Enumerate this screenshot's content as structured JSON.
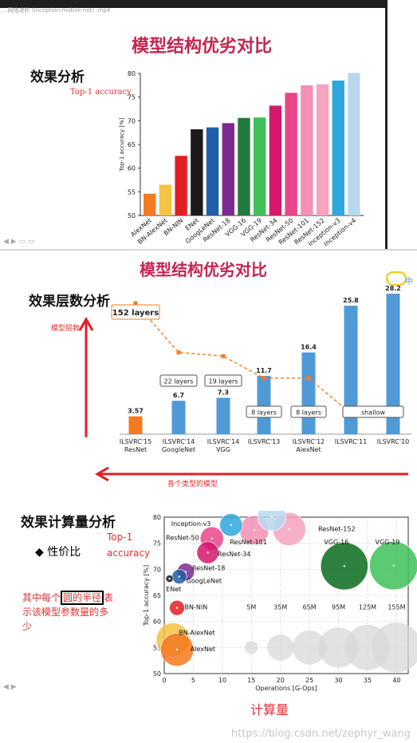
{
  "window": {
    "title": "...网络进阶 (Inception-mobile-net) .mp4"
  },
  "panel1": {
    "title": "模型结构优劣对比",
    "section": "效果分析",
    "annotation": "Top-1 accuracy"
  },
  "panel2": {
    "title": "模型结构优劣对比",
    "section": "效果层数分析",
    "y_annotation": "模型层数",
    "x_annotation": "各个类型的模型"
  },
  "panel3": {
    "section": "效果计算量分析",
    "bullet": "性价比",
    "top1_label": "Top-1\naccuracy",
    "note_before": "其中每个",
    "note_boxed": "圆的半径",
    "note_after": "表示该模型参数量的多少",
    "xlabel_cn": "计算量"
  },
  "watermark": "https://blog.csdn.net/zephyr_wang",
  "colors": {
    "title": "#c4264f",
    "annotation": "#e53030",
    "bar_blue": "#4f9ad6",
    "bar_orange": "#f47920"
  },
  "chart_data": [
    {
      "type": "bar",
      "ylabel": "Top-1 accuracy [%]",
      "ylim": [
        50,
        80
      ],
      "yticks": [
        50,
        55,
        60,
        65,
        70,
        75,
        80
      ],
      "categories": [
        "AlexNet",
        "BN-AlexNet",
        "BN-NIN",
        "ENet",
        "GoogLeNet",
        "ResNet-18",
        "VGG-16",
        "VGG-19",
        "ResNet-34",
        "ResNet-50",
        "ResNet-101",
        "ResNet-152",
        "Inception-v3",
        "Inception-v4"
      ],
      "values": [
        54.6,
        56.5,
        62.6,
        68.2,
        68.6,
        69.5,
        70.6,
        70.7,
        73.2,
        75.9,
        77.5,
        77.7,
        78.5,
        80.1
      ],
      "colors": [
        "#f47920",
        "#f5c242",
        "#e31e24",
        "#1a1a1a",
        "#1f5ea8",
        "#7b2a8e",
        "#1f7a3d",
        "#3fbf5a",
        "#d4186c",
        "#e8458a",
        "#f58fb4",
        "#f5a3be",
        "#2ea8dc",
        "#b8d8f0"
      ]
    },
    {
      "type": "bar",
      "categories": [
        {
          "line1": "ILSVRC'15",
          "line2": "ResNet"
        },
        {
          "line1": "ILSVRC'14",
          "line2": "GoogleNet"
        },
        {
          "line1": "ILSVRC'14",
          "line2": "VGG"
        },
        {
          "line1": "ILSVRC'13",
          "line2": ""
        },
        {
          "line1": "ILSVRC'12",
          "line2": "AlexNet"
        },
        {
          "line1": "ILSVRC'11",
          "line2": ""
        },
        {
          "line1": "ILSVRC'10",
          "line2": ""
        }
      ],
      "values": [
        3.57,
        6.7,
        7.3,
        11.7,
        16.4,
        25.8,
        28.2
      ],
      "value_labels": [
        "3.57",
        "6.7",
        "7.3",
        "11.7",
        "16.4",
        "25.8",
        "28.2"
      ],
      "layer_labels": [
        "152 layers",
        "22 layers",
        "19 layers",
        "8 layers",
        "8 layers",
        "shallow"
      ],
      "layers_trend": [
        152,
        22,
        19,
        8,
        8,
        2,
        2
      ]
    },
    {
      "type": "scatter",
      "xlabel": "Operations [G-Ops]",
      "ylabel": "Top-1 accuracy [%]",
      "xlim": [
        0,
        42
      ],
      "ylim": [
        50,
        80
      ],
      "xticks": [
        0,
        5,
        10,
        15,
        20,
        25,
        30,
        35,
        40
      ],
      "yticks": [
        50,
        55,
        60,
        65,
        70,
        75,
        80
      ],
      "points": [
        {
          "name": "AlexNet",
          "x": 2.2,
          "y": 54.6,
          "params": 61,
          "color": "#f47920"
        },
        {
          "name": "BN-AlexNet",
          "x": 1.5,
          "y": 56.5,
          "params": 62,
          "color": "#f5c242"
        },
        {
          "name": "BN-NIN",
          "x": 2.2,
          "y": 62.6,
          "params": 7.6,
          "color": "#e31e24"
        },
        {
          "name": "ENet",
          "x": 0.9,
          "y": 68.2,
          "params": 0.4,
          "color": "#1a1a1a"
        },
        {
          "name": "GoogLeNet",
          "x": 2.6,
          "y": 68.6,
          "params": 7,
          "color": "#1f5ea8"
        },
        {
          "name": "ResNet-18",
          "x": 3.7,
          "y": 69.5,
          "params": 11.7,
          "color": "#7b2a8e"
        },
        {
          "name": "ResNet-34",
          "x": 7.5,
          "y": 73.2,
          "params": 21.8,
          "color": "#d4186c"
        },
        {
          "name": "ResNet-50",
          "x": 8.2,
          "y": 75.9,
          "params": 25.6,
          "color": "#e8458a"
        },
        {
          "name": "ResNet-101",
          "x": 15.5,
          "y": 77.5,
          "params": 44.5,
          "color": "#f58fb4"
        },
        {
          "name": "ResNet-152",
          "x": 21.5,
          "y": 77.7,
          "params": 60.2,
          "color": "#f5a3be"
        },
        {
          "name": "Inception-v3",
          "x": 11.5,
          "y": 78.5,
          "params": 23.8,
          "color": "#2ea8dc"
        },
        {
          "name": "Inception-v4",
          "x": 18.5,
          "y": 80.1,
          "params": 42.7,
          "color": "#b8d8f0"
        },
        {
          "name": "VGG-16",
          "x": 31,
          "y": 70.6,
          "params": 138,
          "color": "#0b6b1e"
        },
        {
          "name": "VGG-19",
          "x": 39.5,
          "y": 70.7,
          "params": 144,
          "color": "#3fbf5a"
        }
      ],
      "size_legend": [
        {
          "label": "5M",
          "x": 15,
          "params": 5
        },
        {
          "label": "35M",
          "x": 20,
          "params": 35
        },
        {
          "label": "65M",
          "x": 25,
          "params": 65
        },
        {
          "label": "95M",
          "x": 30,
          "params": 95
        },
        {
          "label": "125M",
          "x": 35,
          "params": 125
        },
        {
          "label": "155M",
          "x": 40,
          "params": 155
        }
      ],
      "size_legend_y": 55
    }
  ]
}
